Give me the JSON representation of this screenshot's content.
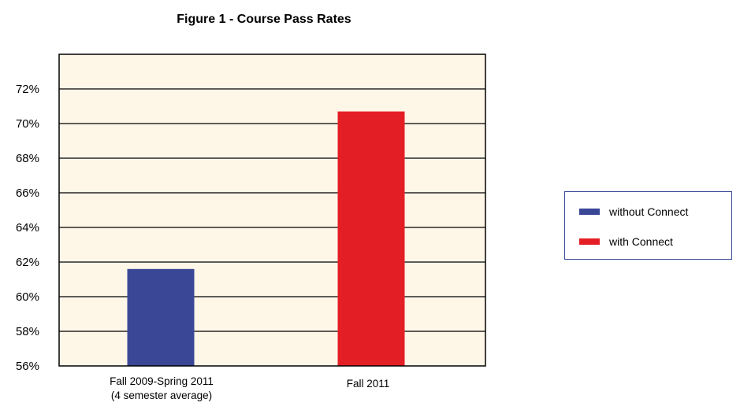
{
  "chart_data": {
    "type": "bar",
    "title": "Figure 1 - Course Pass Rates",
    "xlabel": "",
    "ylabel": "",
    "categories": [
      [
        "Fall 2009-Spring 2011",
        "(4 semester average)"
      ],
      [
        "Fall 2011"
      ]
    ],
    "series": [
      {
        "name": "without Connect",
        "color": "#3a4797"
      },
      {
        "name": "with Connect",
        "color": "#e41e25"
      }
    ],
    "values": [
      61.6,
      70.7
    ],
    "bar_series": [
      0,
      1
    ],
    "ylim": [
      56,
      74
    ],
    "yticks": [
      56,
      58,
      60,
      62,
      64,
      66,
      68,
      70,
      72
    ],
    "ytick_labels": [
      "56%",
      "58%",
      "60%",
      "62%",
      "64%",
      "66%",
      "68%",
      "70%",
      "72%"
    ],
    "grid": true,
    "plot_background": "#fef7e8",
    "legend_position": "right"
  }
}
